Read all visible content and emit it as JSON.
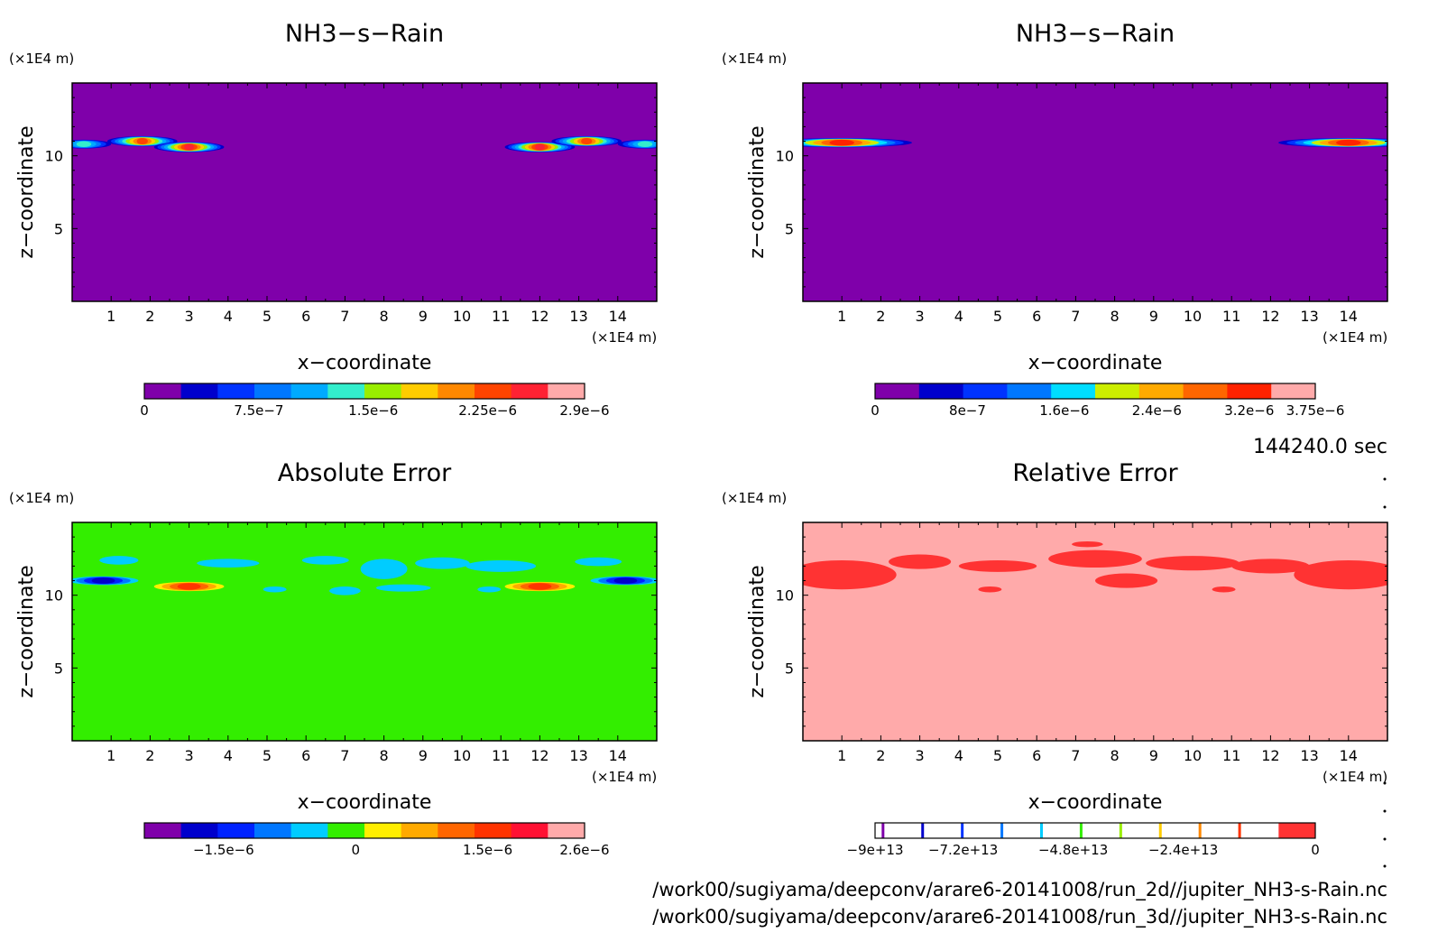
{
  "timestamp": "144240.0 sec",
  "file_paths": [
    "/work00/sugiyama/deepconv/arare6-20141008/run_2d//jupiter_NH3-s-Rain.nc",
    "/work00/sugiyama/deepconv/arare6-20141008/run_3d//jupiter_NH3-s-Rain.nc"
  ],
  "colors": {
    "purple": "#7f00aa",
    "pink": "#ffaaaa",
    "green": "#33ee00",
    "red": "#ff3333"
  },
  "chart_data": [
    {
      "type": "heatmap",
      "title": "NH3−s−Rain",
      "xlabel": "x−coordinate",
      "ylabel": "z−coordinate",
      "x_unit": "(×1E4 m)",
      "y_unit": "(×1E4 m)",
      "xlim": [
        0,
        15
      ],
      "ylim": [
        0,
        15
      ],
      "x_ticks": [
        "1",
        "2",
        "3",
        "4",
        "5",
        "6",
        "7",
        "8",
        "9",
        "10",
        "11",
        "12",
        "13",
        "14"
      ],
      "y_ticks": [
        "5",
        "10"
      ],
      "background": "#7f00aa",
      "colorbar": {
        "colors": [
          "#7f00aa",
          "#0000cc",
          "#0033ff",
          "#0077ff",
          "#00aaff",
          "#33eecc",
          "#99ee00",
          "#ffcc00",
          "#ff8800",
          "#ff4400",
          "#ff2233",
          "#ffaaaa"
        ],
        "labels": [
          "0",
          "7.5e−7",
          "1.5e−6",
          "2.25e−6",
          "2.9e−6"
        ],
        "label_fracs": [
          0,
          0.26,
          0.52,
          0.78,
          1.0
        ]
      },
      "features": [
        {
          "x": 1.8,
          "z": 11.0,
          "rx": 0.9,
          "rz": 0.35,
          "peak": 0.9
        },
        {
          "x": 3.0,
          "z": 10.6,
          "rx": 0.9,
          "rz": 0.35,
          "peak": 0.95
        },
        {
          "x": 0.3,
          "z": 10.8,
          "rx": 0.7,
          "rz": 0.3,
          "peak": 0.5
        },
        {
          "x": 12.0,
          "z": 10.6,
          "rx": 0.9,
          "rz": 0.35,
          "peak": 0.95
        },
        {
          "x": 13.2,
          "z": 11.0,
          "rx": 0.9,
          "rz": 0.35,
          "peak": 0.9
        },
        {
          "x": 14.7,
          "z": 10.8,
          "rx": 0.7,
          "rz": 0.3,
          "peak": 0.5
        }
      ]
    },
    {
      "type": "heatmap",
      "title": "NH3−s−Rain",
      "xlabel": "x−coordinate",
      "ylabel": "z−coordinate",
      "x_unit": "(×1E4 m)",
      "y_unit": "(×1E4 m)",
      "xlim": [
        0,
        15
      ],
      "ylim": [
        0,
        15
      ],
      "x_ticks": [
        "1",
        "2",
        "3",
        "4",
        "5",
        "6",
        "7",
        "8",
        "9",
        "10",
        "11",
        "12",
        "13",
        "14"
      ],
      "y_ticks": [
        "5",
        "10"
      ],
      "background": "#7f00aa",
      "colorbar": {
        "colors": [
          "#7f00aa",
          "#0000cc",
          "#0033ff",
          "#0077ff",
          "#00ddff",
          "#ccee00",
          "#ffaa00",
          "#ff6600",
          "#ff2200",
          "#ffaaaa"
        ],
        "labels": [
          "0",
          "8e−7",
          "1.6e−6",
          "2.4e−6",
          "3.2e−6",
          "3.75e−6"
        ],
        "label_fracs": [
          0,
          0.21,
          0.43,
          0.64,
          0.85,
          1.0
        ]
      },
      "features": [
        {
          "x": 1.0,
          "z": 10.9,
          "rx": 1.8,
          "rz": 0.32,
          "peak": 0.95
        },
        {
          "x": 14.0,
          "z": 10.9,
          "rx": 1.8,
          "rz": 0.32,
          "peak": 0.95
        }
      ]
    },
    {
      "type": "heatmap",
      "title": "Absolute Error",
      "xlabel": "x−coordinate",
      "ylabel": "z−coordinate",
      "x_unit": "(×1E4 m)",
      "y_unit": "(×1E4 m)",
      "xlim": [
        0,
        15
      ],
      "ylim": [
        0,
        15
      ],
      "x_ticks": [
        "1",
        "2",
        "3",
        "4",
        "5",
        "6",
        "7",
        "8",
        "9",
        "10",
        "11",
        "12",
        "13",
        "14"
      ],
      "y_ticks": [
        "5",
        "10"
      ],
      "background": "#33ee00",
      "colorbar": {
        "colors": [
          "#7f00aa",
          "#0000cc",
          "#0022ff",
          "#0077ff",
          "#00ccff",
          "#33ee00",
          "#ffee00",
          "#ffaa00",
          "#ff6600",
          "#ff3300",
          "#ff1133",
          "#ffaaaa"
        ],
        "labels": [
          "−1.5e−6",
          "0",
          "1.5e−6",
          "2.6e−6"
        ],
        "label_fracs": [
          0.18,
          0.48,
          0.78,
          1.0
        ]
      },
      "features": [
        {
          "x": 0.8,
          "z": 11.0,
          "rx": 0.9,
          "rz": 0.3,
          "peak": -0.9
        },
        {
          "x": 3.0,
          "z": 10.6,
          "rx": 0.9,
          "rz": 0.32,
          "peak": 0.9
        },
        {
          "x": 12.0,
          "z": 10.6,
          "rx": 0.9,
          "rz": 0.32,
          "peak": 0.9
        },
        {
          "x": 14.2,
          "z": 11.0,
          "rx": 0.9,
          "rz": 0.3,
          "peak": -0.9
        }
      ],
      "blobs": [
        {
          "x": 1.2,
          "z": 12.4,
          "rx": 0.5,
          "rz": 0.3
        },
        {
          "x": 4.0,
          "z": 12.2,
          "rx": 0.8,
          "rz": 0.3
        },
        {
          "x": 6.5,
          "z": 12.4,
          "rx": 0.6,
          "rz": 0.3
        },
        {
          "x": 8.0,
          "z": 11.8,
          "rx": 0.6,
          "rz": 0.7
        },
        {
          "x": 9.5,
          "z": 12.2,
          "rx": 0.7,
          "rz": 0.4
        },
        {
          "x": 7.0,
          "z": 10.3,
          "rx": 0.4,
          "rz": 0.3
        },
        {
          "x": 8.5,
          "z": 10.5,
          "rx": 0.7,
          "rz": 0.25
        },
        {
          "x": 11.0,
          "z": 12.0,
          "rx": 0.9,
          "rz": 0.4
        },
        {
          "x": 13.5,
          "z": 12.3,
          "rx": 0.6,
          "rz": 0.3
        },
        {
          "x": 5.2,
          "z": 10.4,
          "rx": 0.3,
          "rz": 0.2
        },
        {
          "x": 10.7,
          "z": 10.4,
          "rx": 0.3,
          "rz": 0.2
        }
      ]
    },
    {
      "type": "heatmap",
      "title": "Relative Error",
      "xlabel": "x−coordinate",
      "ylabel": "z−coordinate",
      "x_unit": "(×1E4 m)",
      "y_unit": "(×1E4 m)",
      "xlim": [
        0,
        15
      ],
      "ylim": [
        0,
        15
      ],
      "x_ticks": [
        "1",
        "2",
        "3",
        "4",
        "5",
        "6",
        "7",
        "8",
        "9",
        "10",
        "11",
        "12",
        "13",
        "14"
      ],
      "y_ticks": [
        "5",
        "10"
      ],
      "background": "#ffaaaa",
      "colorbar": {
        "colors": [
          "#ffffff",
          "#ffffff",
          "#ffffff",
          "#ffffff",
          "#ffffff",
          "#ffffff",
          "#ffffff",
          "#ffffff",
          "#ffffff",
          "#ffffff",
          "#ffffff",
          "#ff3333"
        ],
        "lines": [
          {
            "f": 0.015,
            "c": "#7f00aa"
          },
          {
            "f": 0.105,
            "c": "#0000cc"
          },
          {
            "f": 0.195,
            "c": "#0033ff"
          },
          {
            "f": 0.285,
            "c": "#0077ff"
          },
          {
            "f": 0.375,
            "c": "#00ccff"
          },
          {
            "f": 0.465,
            "c": "#33ee00"
          },
          {
            "f": 0.555,
            "c": "#99ee00"
          },
          {
            "f": 0.645,
            "c": "#ffcc00"
          },
          {
            "f": 0.735,
            "c": "#ff8800"
          },
          {
            "f": 0.825,
            "c": "#ff3300"
          }
        ],
        "labels": [
          "−9e+13",
          "−7.2e+13",
          "−4.8e+13",
          "−2.4e+13",
          "0"
        ],
        "label_fracs": [
          0.0,
          0.2,
          0.45,
          0.7,
          1.0
        ]
      },
      "features": [],
      "blobs": [
        {
          "x": 1.0,
          "z": 11.4,
          "rx": 1.4,
          "rz": 1.0
        },
        {
          "x": 3.0,
          "z": 12.3,
          "rx": 0.8,
          "rz": 0.5
        },
        {
          "x": 5.0,
          "z": 12.0,
          "rx": 1.0,
          "rz": 0.4
        },
        {
          "x": 7.5,
          "z": 12.5,
          "rx": 1.2,
          "rz": 0.6
        },
        {
          "x": 8.3,
          "z": 11.0,
          "rx": 0.8,
          "rz": 0.5
        },
        {
          "x": 10.0,
          "z": 12.2,
          "rx": 1.2,
          "rz": 0.5
        },
        {
          "x": 12.0,
          "z": 12.0,
          "rx": 1.0,
          "rz": 0.5
        },
        {
          "x": 14.0,
          "z": 11.4,
          "rx": 1.4,
          "rz": 1.0
        },
        {
          "x": 4.8,
          "z": 10.4,
          "rx": 0.3,
          "rz": 0.2
        },
        {
          "x": 10.8,
          "z": 10.4,
          "rx": 0.3,
          "rz": 0.2
        },
        {
          "x": 7.3,
          "z": 13.5,
          "rx": 0.4,
          "rz": 0.2
        }
      ]
    }
  ]
}
